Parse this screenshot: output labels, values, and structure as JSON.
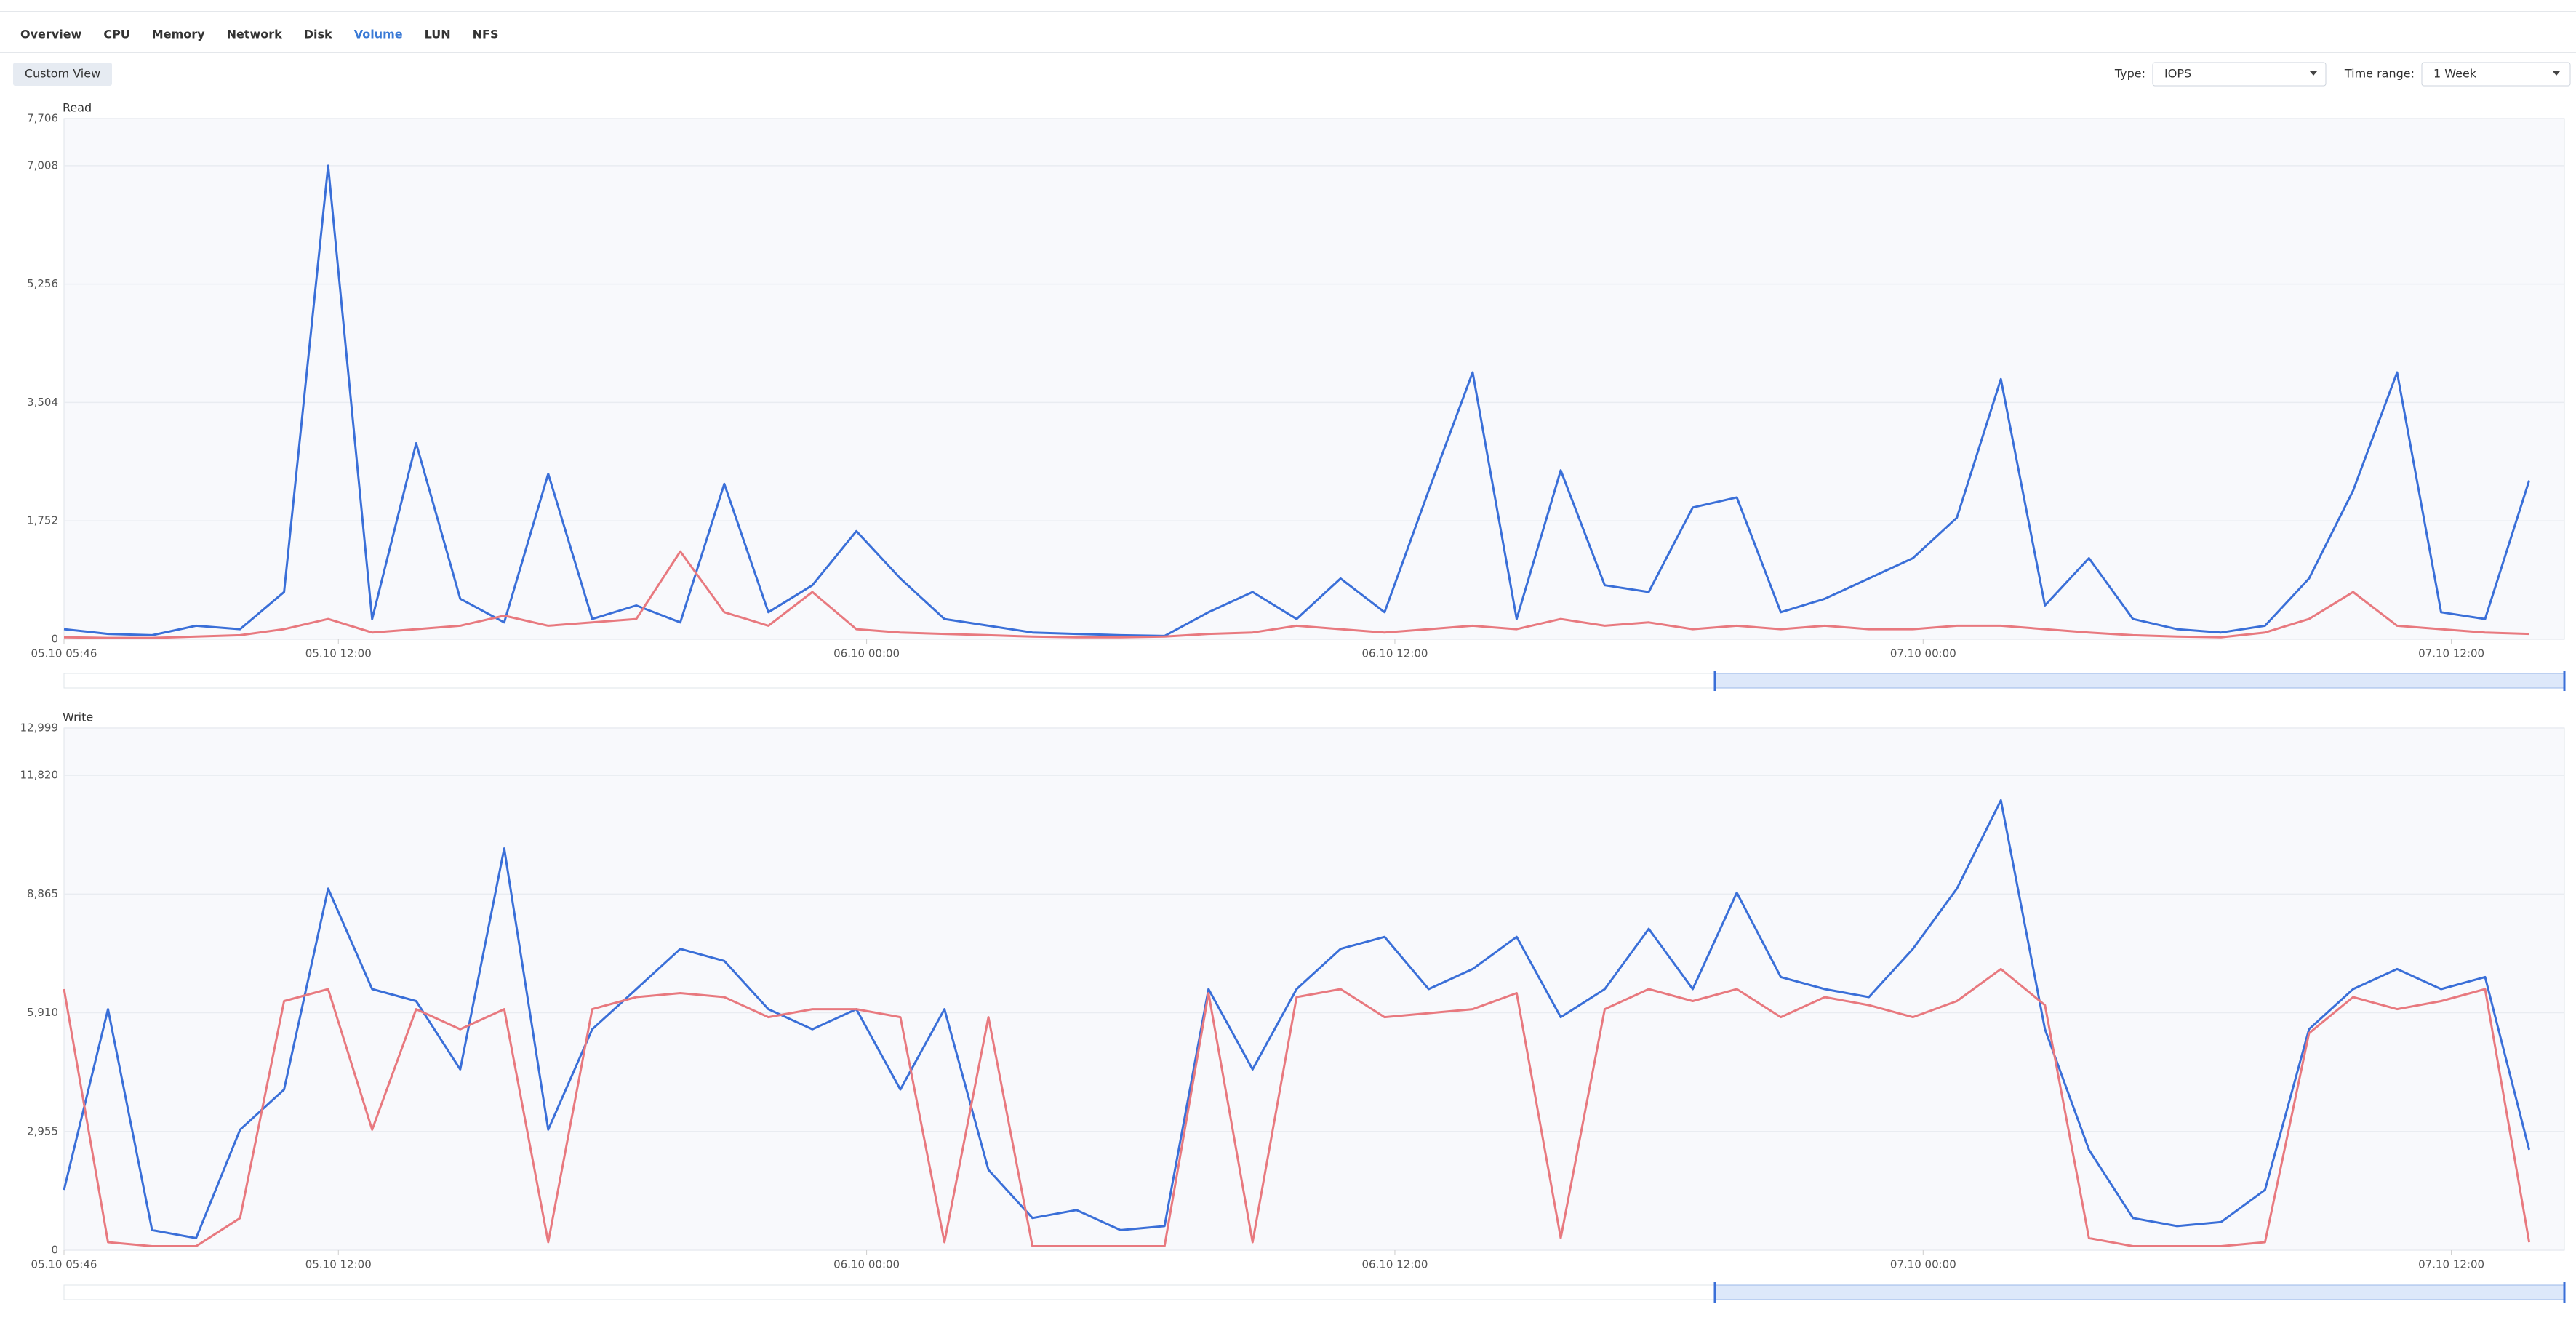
{
  "tabs": [
    "Overview",
    "CPU",
    "Memory",
    "Network",
    "Disk",
    "Volume",
    "LUN",
    "NFS"
  ],
  "active_tab": 5,
  "button": "Custom View",
  "type_label": "Type:",
  "type_value": "IOPS",
  "range_label": "Time range:",
  "range_value": "1 Week",
  "chart_data": [
    {
      "type": "line",
      "title": "Read",
      "x": [
        0,
        1,
        2,
        3,
        4,
        5,
        6,
        7,
        8,
        9,
        10,
        11,
        12,
        13,
        14,
        15,
        16,
        17,
        18,
        19,
        20,
        21,
        22,
        23,
        24,
        25,
        26,
        27,
        28,
        29,
        30,
        31,
        32,
        33,
        34,
        35,
        36,
        37,
        38,
        39,
        40,
        41,
        42,
        43,
        44,
        45,
        46,
        47,
        48,
        49,
        50,
        51,
        52,
        53,
        54,
        55,
        56
      ],
      "xlim": [
        0,
        56.8
      ],
      "xticks": [
        {
          "value": 0,
          "label": "05.10 05:46"
        },
        {
          "value": 6.233,
          "label": "05.10 12:00"
        },
        {
          "value": 18.233,
          "label": "06.10 00:00"
        },
        {
          "value": 30.233,
          "label": "06.10 12:00"
        },
        {
          "value": 42.233,
          "label": "07.10 00:00"
        },
        {
          "value": 54.233,
          "label": "07.10 12:00"
        }
      ],
      "ylim": [
        0,
        7706
      ],
      "yticks": [
        0,
        {
          "value": 1752,
          "label": "1,752"
        },
        {
          "value": 3504,
          "label": "3,504"
        },
        {
          "value": 5256,
          "label": "5,256"
        },
        {
          "value": 7008,
          "label": "7,008"
        },
        {
          "value": 7706,
          "label": "7,706"
        }
      ],
      "grid": true,
      "series": [
        {
          "color": "#3a6fd8",
          "values": [
            150,
            80,
            60,
            200,
            150,
            700,
            7008,
            300,
            2900,
            600,
            250,
            2450,
            300,
            500,
            250,
            2300,
            400,
            800,
            1600,
            900,
            300,
            200,
            100,
            80,
            60,
            50,
            400,
            700,
            300,
            900,
            400,
            2200,
            3950,
            300,
            2500,
            800,
            700,
            1950,
            2100,
            400,
            600,
            900,
            1200,
            1800,
            3850,
            500,
            1200,
            300,
            150,
            100,
            200,
            900,
            2200,
            3950,
            400,
            300,
            2350
          ]
        },
        {
          "color": "#e8797f",
          "values": [
            30,
            20,
            20,
            40,
            60,
            150,
            300,
            100,
            150,
            200,
            350,
            200,
            250,
            300,
            1300,
            400,
            200,
            700,
            150,
            100,
            80,
            60,
            40,
            30,
            30,
            40,
            80,
            100,
            200,
            150,
            100,
            150,
            200,
            150,
            300,
            200,
            250,
            150,
            200,
            150,
            200,
            150,
            150,
            200,
            200,
            150,
            100,
            60,
            40,
            30,
            100,
            300,
            700,
            200,
            150,
            100,
            80
          ]
        }
      ]
    },
    {
      "type": "line",
      "title": "Write",
      "x": [
        0,
        1,
        2,
        3,
        4,
        5,
        6,
        7,
        8,
        9,
        10,
        11,
        12,
        13,
        14,
        15,
        16,
        17,
        18,
        19,
        20,
        21,
        22,
        23,
        24,
        25,
        26,
        27,
        28,
        29,
        30,
        31,
        32,
        33,
        34,
        35,
        36,
        37,
        38,
        39,
        40,
        41,
        42,
        43,
        44,
        45,
        46,
        47,
        48,
        49,
        50,
        51,
        52,
        53,
        54,
        55,
        56
      ],
      "xlim": [
        0,
        56.8
      ],
      "xticks": [
        {
          "value": 0,
          "label": "05.10 05:46"
        },
        {
          "value": 6.233,
          "label": "05.10 12:00"
        },
        {
          "value": 18.233,
          "label": "06.10 00:00"
        },
        {
          "value": 30.233,
          "label": "06.10 12:00"
        },
        {
          "value": 42.233,
          "label": "07.10 00:00"
        },
        {
          "value": 54.233,
          "label": "07.10 12:00"
        }
      ],
      "ylim": [
        0,
        12999
      ],
      "yticks": [
        0,
        {
          "value": 2955,
          "label": "2,955"
        },
        {
          "value": 5910,
          "label": "5,910"
        },
        {
          "value": 8865,
          "label": "8,865"
        },
        {
          "value": 11820,
          "label": "11,820"
        },
        {
          "value": 12999,
          "label": "12,999"
        }
      ],
      "grid": true,
      "series": [
        {
          "color": "#3a6fd8",
          "values": [
            1500,
            6000,
            500,
            300,
            3000,
            4000,
            9000,
            6500,
            6200,
            4500,
            10000,
            3000,
            5500,
            6500,
            7500,
            7200,
            6000,
            5500,
            6000,
            4000,
            6000,
            2000,
            800,
            1000,
            500,
            600,
            6500,
            4500,
            6500,
            7500,
            7800,
            6500,
            7000,
            7800,
            5800,
            6500,
            8000,
            6500,
            8900,
            6800,
            6500,
            6300,
            7500,
            9000,
            11200,
            5500,
            2500,
            800,
            600,
            700,
            1500,
            5500,
            6500,
            7000,
            6500,
            6800,
            2500
          ]
        },
        {
          "color": "#e8797f",
          "values": [
            6500,
            200,
            100,
            100,
            800,
            6200,
            6500,
            3000,
            6000,
            5500,
            6000,
            200,
            6000,
            6300,
            6400,
            6300,
            5800,
            6000,
            6000,
            5800,
            200,
            5800,
            100,
            100,
            100,
            100,
            6400,
            200,
            6300,
            6500,
            5800,
            5900,
            6000,
            6400,
            300,
            6000,
            6500,
            6200,
            6500,
            5800,
            6300,
            6100,
            5800,
            6200,
            7000,
            6100,
            300,
            100,
            100,
            100,
            200,
            5400,
            6300,
            6000,
            6200,
            6500,
            200
          ]
        }
      ]
    }
  ]
}
